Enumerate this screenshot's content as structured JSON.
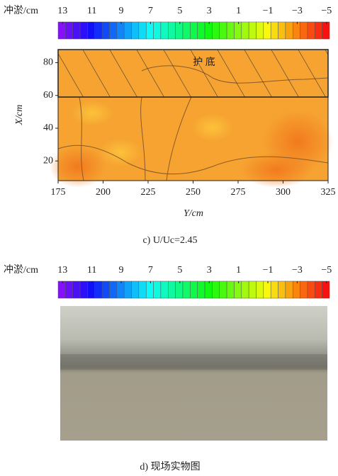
{
  "chart_data": [
    {
      "type": "contour",
      "colorbar": {
        "label": "冲淤/cm",
        "lim": [
          13.3,
          -5.2
        ],
        "ticks": [
          13,
          11,
          9,
          7,
          5,
          3,
          1,
          {
            "value": -1,
            "label": "−1"
          },
          {
            "value": -3,
            "label": "−3"
          },
          {
            "value": -5,
            "label": "−5"
          }
        ]
      },
      "annotation": "护 底",
      "xlabel": "Y/cm",
      "ylabel": "X/cm",
      "xlim": [
        175,
        325
      ],
      "xticks": [
        175,
        200,
        225,
        250,
        275,
        300,
        325
      ],
      "ylim": [
        8,
        88
      ],
      "yticks": [
        20,
        40,
        60,
        80
      ],
      "caption": "c) U/Uc=2.45"
    },
    {
      "type": "photo",
      "colorbar": {
        "label": "冲淤/cm",
        "lim": [
          13.3,
          -5.2
        ],
        "ticks": [
          13,
          11,
          9,
          7,
          5,
          3,
          1,
          {
            "value": -1,
            "label": "−1"
          },
          {
            "value": -3,
            "label": "−3"
          },
          {
            "value": -5,
            "label": "−5"
          }
        ]
      },
      "caption": "d) 现场实物图"
    }
  ]
}
